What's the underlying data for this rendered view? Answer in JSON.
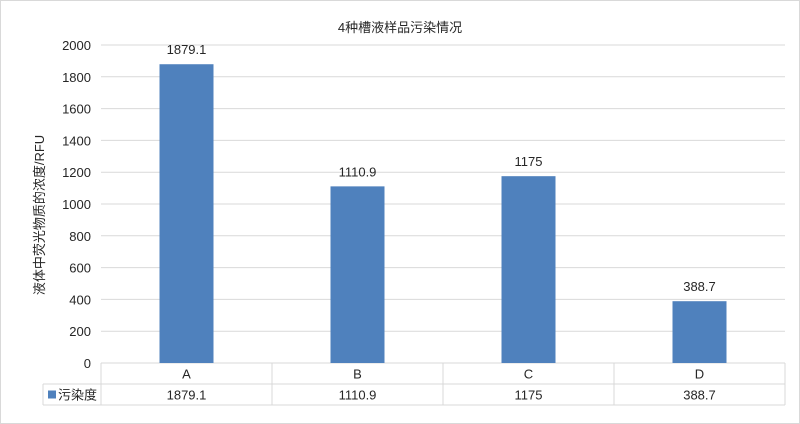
{
  "chart_data": {
    "type": "bar",
    "title": "4种槽液样品污染情况",
    "xlabel": "",
    "ylabel": "液体中荧光物质的浓度/RFU",
    "categories": [
      "A",
      "B",
      "C",
      "D"
    ],
    "series": [
      {
        "name": "污染度",
        "values": [
          1879.1,
          1110.9,
          1175,
          388.7
        ]
      }
    ],
    "data_labels": [
      "1879.1",
      "1110.9",
      "1175",
      "388.7"
    ],
    "ylim": [
      0,
      2000
    ],
    "yticks": [
      0,
      200,
      400,
      600,
      800,
      1000,
      1200,
      1400,
      1600,
      1800,
      2000
    ],
    "grid": true,
    "legend": "data-table",
    "data_table": true,
    "colors": {
      "bar": "#4f81bd",
      "grid": "#d9d9d9"
    }
  }
}
